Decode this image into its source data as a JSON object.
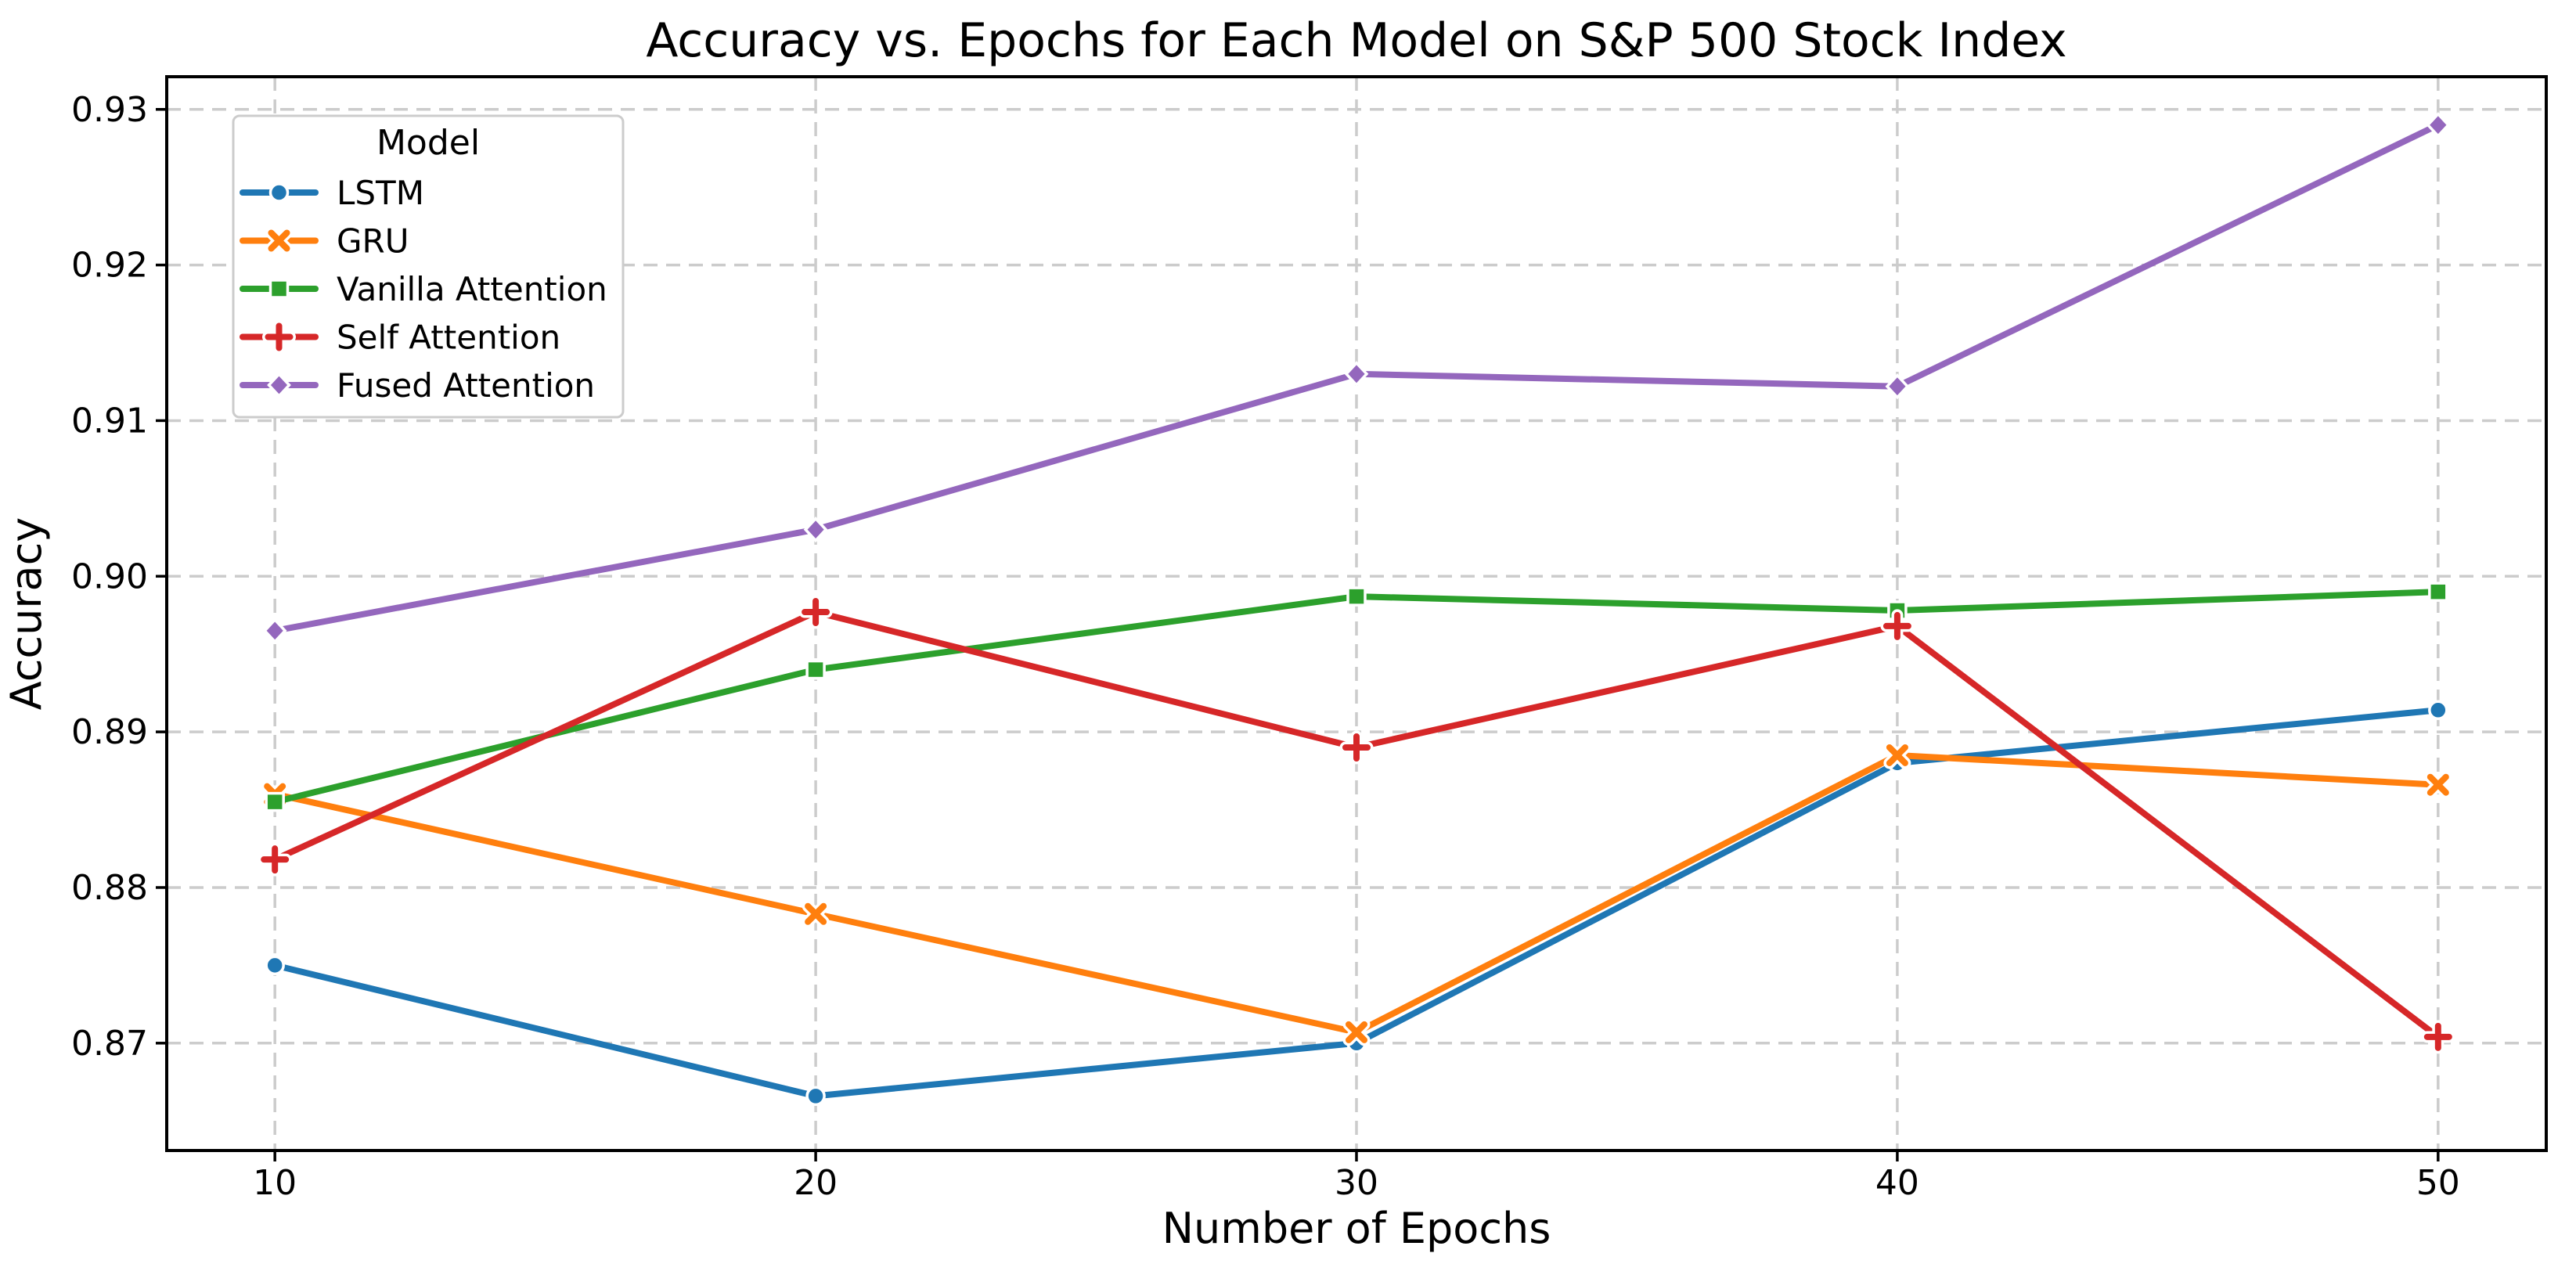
{
  "figure": {
    "background": "#ffffff",
    "text_color": "#000000",
    "grid_color": "#cccccc",
    "spine_color": "#000000",
    "legend_border_color": "#cccccc"
  },
  "chart_data": {
    "type": "line",
    "title": "Accuracy vs. Epochs for Each Model on S&P 500 Stock Index",
    "xlabel": "Number of Epochs",
    "ylabel": "Accuracy",
    "x": [
      10,
      20,
      30,
      40,
      50
    ],
    "xtick_labels": [
      "10",
      "20",
      "30",
      "40",
      "50"
    ],
    "ytick_values": [
      0.87,
      0.88,
      0.89,
      0.9,
      0.91,
      0.92,
      0.93
    ],
    "ytick_labels": [
      "0.87",
      "0.88",
      "0.89",
      "0.90",
      "0.91",
      "0.92",
      "0.93"
    ],
    "xlim": [
      8,
      52
    ],
    "ylim": [
      0.8631,
      0.9321
    ],
    "grid": true,
    "grid_style": "dashed",
    "legend": {
      "title": "Model",
      "position": "upper left"
    },
    "series": [
      {
        "name": "LSTM",
        "color": "#1f77b4",
        "marker": "circle",
        "values": [
          0.875,
          0.8666,
          0.87,
          0.888,
          0.8914
        ]
      },
      {
        "name": "GRU",
        "color": "#ff7f0e",
        "marker": "x",
        "values": [
          0.886,
          0.8783,
          0.8707,
          0.8885,
          0.8866
        ]
      },
      {
        "name": "Vanilla Attention",
        "color": "#2ca02c",
        "marker": "square",
        "values": [
          0.8855,
          0.894,
          0.8987,
          0.8978,
          0.899
        ]
      },
      {
        "name": "Self Attention",
        "color": "#d62728",
        "marker": "plus",
        "values": [
          0.8818,
          0.8977,
          0.889,
          0.8968,
          0.8704
        ]
      },
      {
        "name": "Fused Attention",
        "color": "#9467bd",
        "marker": "diamond",
        "values": [
          0.8965,
          0.903,
          0.913,
          0.9122,
          0.929
        ]
      }
    ]
  }
}
